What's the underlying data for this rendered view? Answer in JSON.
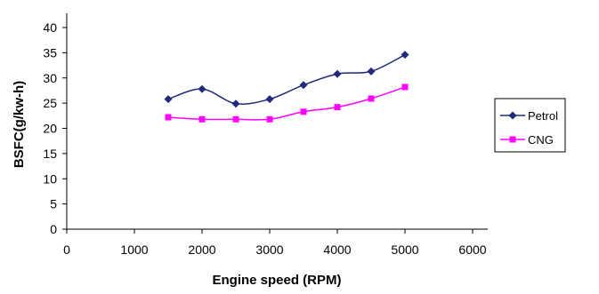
{
  "chart_data": {
    "type": "line",
    "xlabel": "Engine speed (RPM)",
    "ylabel": "BSFC(g/kw-h)",
    "xlim": [
      0,
      6000
    ],
    "ylim": [
      0,
      40
    ],
    "xticks": [
      0,
      1000,
      2000,
      3000,
      4000,
      5000,
      6000
    ],
    "yticks": [
      0,
      5,
      10,
      15,
      20,
      25,
      30,
      35,
      40
    ],
    "grid": false,
    "legend_position": "right",
    "x": [
      1500,
      2000,
      2500,
      3000,
      3500,
      4000,
      4500,
      5000
    ],
    "series": [
      {
        "name": "Petrol",
        "color": "#1f2a7a",
        "marker": "diamond",
        "values": [
          25.8,
          27.8,
          24.9,
          25.8,
          28.6,
          30.8,
          31.3,
          34.6
        ]
      },
      {
        "name": "CNG",
        "color": "#ff00ff",
        "marker": "square",
        "values": [
          22.2,
          21.8,
          21.8,
          21.8,
          23.3,
          24.2,
          25.9,
          28.2
        ]
      }
    ]
  }
}
